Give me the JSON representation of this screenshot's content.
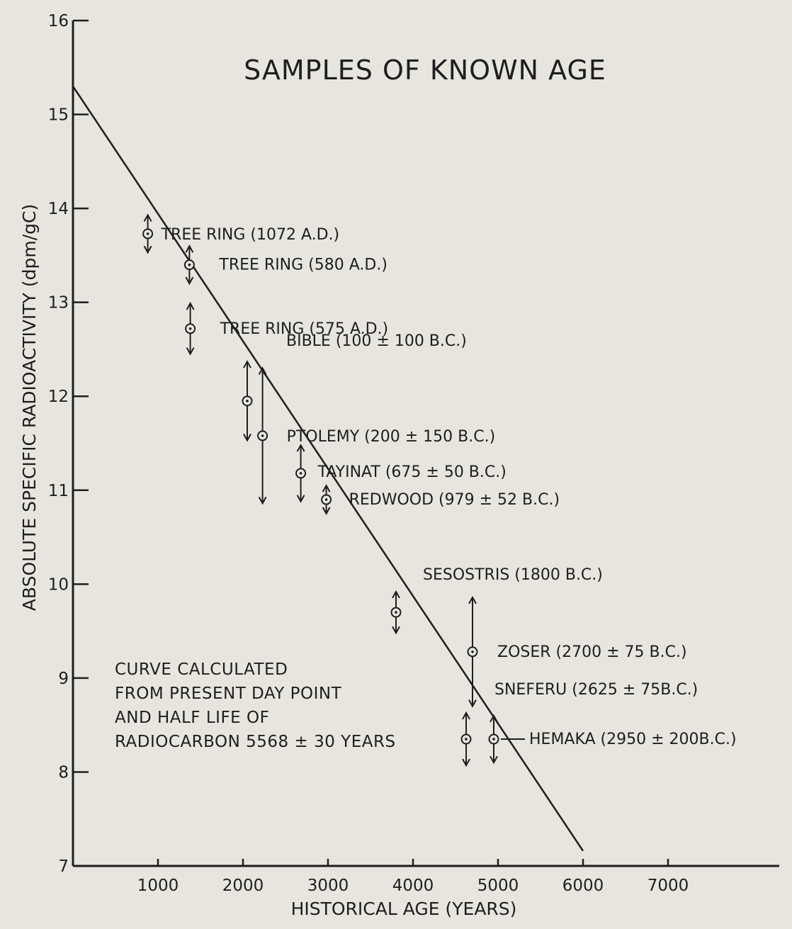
{
  "chart_data": {
    "type": "scatter",
    "title": "SAMPLES OF KNOWN AGE",
    "xlabel": "HISTORICAL AGE (YEARS)",
    "ylabel": "ABSOLUTE SPECIFIC RADIOACTIVITY (dpm/gC)",
    "xlim": [
      0,
      7500
    ],
    "ylim": [
      7,
      16
    ],
    "xticks": [
      1000,
      2000,
      3000,
      4000,
      5000,
      6000,
      7000
    ],
    "yticks": [
      7,
      8,
      9,
      10,
      11,
      12,
      13,
      14,
      15,
      16
    ],
    "grid": false,
    "curve": {
      "x": [
        0,
        6000
      ],
      "y": [
        15.3,
        7.16
      ]
    },
    "points": [
      {
        "x": 880,
        "y": 13.73,
        "err": 0.2,
        "label": "TREE RING (1072 A.D.)"
      },
      {
        "x": 1370,
        "y": 13.4,
        "err": 0.2,
        "label": "TREE RING (580 A.D.)"
      },
      {
        "x": 1380,
        "y": 12.72,
        "err": 0.27,
        "label": "TREE RING (575 A.D.)"
      },
      {
        "x": 2050,
        "y": 11.95,
        "err": 0.42,
        "label": "BIBLE (100 ± 100 B.C.)"
      },
      {
        "x": 2230,
        "y": 11.58,
        "err": 0.72,
        "label": "PTOLEMY (200 ± 150 B.C.)"
      },
      {
        "x": 2680,
        "y": 11.18,
        "err": 0.3,
        "label": "TAYINAT (675 ± 50 B.C.)"
      },
      {
        "x": 2980,
        "y": 10.9,
        "err": 0.15,
        "label": "REDWOOD (979 ± 52 B.C.)"
      },
      {
        "x": 3800,
        "y": 9.7,
        "err": 0.22,
        "label": "SESOSTRIS (1800 B.C.)"
      },
      {
        "x": 4700,
        "y": 9.28,
        "err": 0.58,
        "label": "ZOSER (2700 ± 75 B.C.)"
      },
      {
        "x": 4625,
        "y": 8.35,
        "err": 0.28,
        "label": "SNEFERU (2625 ± 75B.C.)"
      },
      {
        "x": 4950,
        "y": 8.35,
        "err": 0.25,
        "label": "HEMAKA (2950 ± 200B.C.)"
      }
    ],
    "note": [
      "CURVE CALCULATED",
      "FROM PRESENT DAY POINT",
      "AND HALF LIFE OF",
      "RADIOCARBON 5568 ± 30 YEARS"
    ]
  }
}
